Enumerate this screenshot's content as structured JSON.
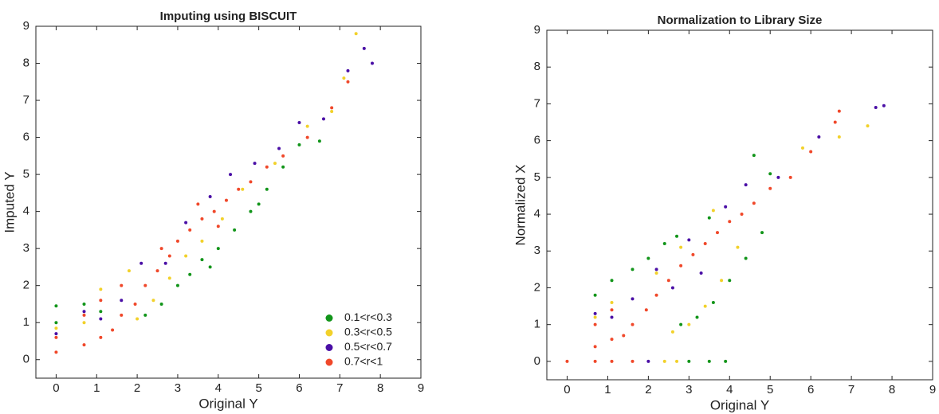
{
  "chart_data": [
    {
      "type": "scatter",
      "title": "Imputing using BISCUIT",
      "x_label": "Original Y",
      "y_label": "Imputed Y",
      "xlim": [
        -0.5,
        9
      ],
      "ylim": [
        -0.5,
        9
      ],
      "xticks": [
        0,
        1,
        2,
        3,
        4,
        5,
        6,
        7,
        8,
        9
      ],
      "yticks": [
        0,
        1,
        2,
        3,
        4,
        5,
        6,
        7,
        8,
        9
      ],
      "legend": "lower right",
      "series": [
        {
          "name": "0.1<r<0.3",
          "color": "#12951a",
          "x": [
            0,
            0,
            0.69,
            1.1,
            2.2,
            2.6,
            3.0,
            3.3,
            3.6,
            4.0,
            4.4,
            4.8,
            5.2,
            5.6,
            6.0,
            6.5,
            3.8,
            5.0
          ],
          "y": [
            1.45,
            1.0,
            1.5,
            1.3,
            1.2,
            1.5,
            2.0,
            2.3,
            2.7,
            3.0,
            3.5,
            4.0,
            4.6,
            5.2,
            5.8,
            5.9,
            2.5,
            4.2
          ]
        },
        {
          "name": "0.3<r<0.5",
          "color": "#f2d12a",
          "x": [
            0,
            0.69,
            1.1,
            2.0,
            2.4,
            2.8,
            3.2,
            3.6,
            4.1,
            4.6,
            5.4,
            6.2,
            6.8,
            7.1,
            7.4,
            1.8
          ],
          "y": [
            0.85,
            1.0,
            1.9,
            1.1,
            1.6,
            2.2,
            2.8,
            3.2,
            3.8,
            4.6,
            5.3,
            6.3,
            6.7,
            7.6,
            8.8,
            2.4
          ]
        },
        {
          "name": "0.5<r<0.7",
          "color": "#4a0fa6",
          "x": [
            0,
            0.69,
            1.1,
            1.61,
            2.1,
            2.7,
            3.2,
            3.8,
            4.3,
            4.9,
            5.5,
            6.0,
            6.6,
            7.2,
            7.6,
            7.8
          ],
          "y": [
            0.7,
            1.3,
            1.1,
            1.6,
            2.6,
            2.6,
            3.7,
            4.4,
            5.0,
            5.3,
            5.7,
            6.4,
            6.5,
            7.8,
            8.4,
            8.0
          ]
        },
        {
          "name": "0.7<r<1",
          "color": "#f0482a",
          "x": [
            0,
            0,
            0.69,
            0.69,
            1.1,
            1.1,
            1.39,
            1.61,
            1.61,
            1.95,
            2.2,
            2.5,
            2.8,
            3.0,
            3.3,
            3.6,
            3.9,
            4.2,
            4.5,
            4.8,
            5.2,
            5.6,
            6.2,
            6.8,
            7.2,
            3.5,
            4.0,
            2.6
          ],
          "y": [
            0.2,
            0.6,
            0.4,
            1.2,
            0.6,
            1.6,
            0.8,
            1.2,
            2.0,
            1.5,
            2.0,
            2.4,
            2.8,
            3.2,
            3.5,
            3.8,
            4.0,
            4.3,
            4.6,
            4.8,
            5.2,
            5.5,
            6.0,
            6.8,
            7.5,
            4.2,
            3.6,
            3.0
          ]
        }
      ]
    },
    {
      "type": "scatter",
      "title": "Normalization to Library Size",
      "x_label": "Original Y",
      "y_label": "Normalized X",
      "xlim": [
        -0.5,
        9
      ],
      "ylim": [
        -0.5,
        9
      ],
      "xticks": [
        0,
        1,
        2,
        3,
        4,
        5,
        6,
        7,
        8,
        9
      ],
      "yticks": [
        0,
        1,
        2,
        3,
        4,
        5,
        6,
        7,
        8,
        9
      ],
      "series": [
        {
          "color": "#12951a",
          "x": [
            0.69,
            1.1,
            1.61,
            2.0,
            2.4,
            2.7,
            3.0,
            3.5,
            3.9,
            2.8,
            3.2,
            3.6,
            4.0,
            4.4,
            4.8,
            5.0,
            4.6,
            3.5
          ],
          "y": [
            1.8,
            2.2,
            2.5,
            2.8,
            3.2,
            3.4,
            0,
            0,
            0,
            1.0,
            1.2,
            1.6,
            2.2,
            2.8,
            3.5,
            5.1,
            5.6,
            3.9
          ]
        },
        {
          "color": "#f2d12a",
          "x": [
            0.69,
            1.1,
            2.4,
            2.7,
            2.6,
            3.0,
            3.4,
            3.8,
            4.2,
            2.2,
            2.8,
            5.8,
            6.7,
            7.4,
            3.6
          ],
          "y": [
            1.2,
            1.6,
            0,
            0,
            0.8,
            1.0,
            1.5,
            2.2,
            3.1,
            2.4,
            3.1,
            5.8,
            6.1,
            6.4,
            4.1
          ]
        },
        {
          "color": "#4a0fa6",
          "x": [
            0.69,
            1.1,
            1.61,
            2.0,
            2.2,
            2.6,
            3.0,
            3.3,
            3.9,
            4.4,
            5.2,
            6.2,
            7.6,
            7.8
          ],
          "y": [
            1.3,
            1.2,
            1.7,
            0,
            2.5,
            2.0,
            3.3,
            2.4,
            4.2,
            4.8,
            5.0,
            6.1,
            6.9,
            6.95
          ]
        },
        {
          "color": "#f0482a",
          "x": [
            0,
            0.69,
            0.69,
            0.69,
            1.1,
            1.1,
            1.39,
            1.61,
            1.95,
            2.2,
            2.5,
            2.8,
            3.1,
            3.4,
            3.7,
            4.0,
            4.3,
            4.6,
            5.0,
            5.5,
            6.0,
            6.6,
            6.7,
            1.1,
            1.61
          ],
          "y": [
            0,
            0,
            0.4,
            1.0,
            0.6,
            1.4,
            0.7,
            1.0,
            1.4,
            1.8,
            2.2,
            2.6,
            2.9,
            3.2,
            3.5,
            3.8,
            4.0,
            4.3,
            4.7,
            5.0,
            5.7,
            6.5,
            6.8,
            0,
            0
          ]
        }
      ]
    }
  ]
}
